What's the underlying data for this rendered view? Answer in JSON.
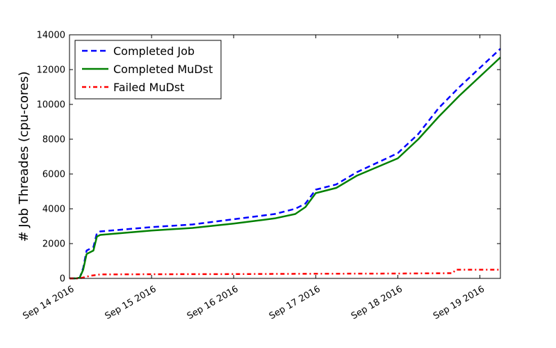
{
  "chart_data": {
    "type": "line",
    "title": "",
    "xlabel": "",
    "ylabel": "# Job Threades (cpu-cores)",
    "xlim": [
      "2016-09-14 00:00",
      "2016-09-19 06:00"
    ],
    "ylim": [
      0,
      14000
    ],
    "x_ticks": [
      "Sep 14 2016",
      "Sep 15 2016",
      "Sep 16 2016",
      "Sep 17 2016",
      "Sep 18 2016",
      "Sep 19 2016"
    ],
    "y_ticks": [
      "0",
      "2000",
      "4000",
      "6000",
      "8000",
      "10000",
      "12000",
      "14000"
    ],
    "grid": false,
    "legend_position": "top-left",
    "series": [
      {
        "name": "Completed Job",
        "color": "#0000ff",
        "style": "dashed",
        "x": [
          "2016-09-14 00:00",
          "2016-09-14 02:00",
          "2016-09-14 03:00",
          "2016-09-14 04:00",
          "2016-09-14 05:00",
          "2016-09-14 07:00",
          "2016-09-14 08:00",
          "2016-09-14 09:00",
          "2016-09-14 12:00",
          "2016-09-15 00:00",
          "2016-09-15 12:00",
          "2016-09-16 00:00",
          "2016-09-16 12:00",
          "2016-09-16 18:00",
          "2016-09-16 21:00",
          "2016-09-17 00:00",
          "2016-09-17 06:00",
          "2016-09-17 12:00",
          "2016-09-18 00:00",
          "2016-09-18 06:00",
          "2016-09-18 12:00",
          "2016-09-18 18:00",
          "2016-09-19 00:00",
          "2016-09-19 06:00"
        ],
        "y": [
          0,
          0,
          50,
          600,
          1600,
          1800,
          2600,
          2700,
          2750,
          2950,
          3100,
          3400,
          3700,
          4000,
          4300,
          5100,
          5400,
          6100,
          7200,
          8300,
          9800,
          11000,
          12100,
          13200
        ]
      },
      {
        "name": "Completed MuDst",
        "color": "#008000",
        "style": "solid",
        "x": [
          "2016-09-14 00:00",
          "2016-09-14 02:00",
          "2016-09-14 03:00",
          "2016-09-14 04:00",
          "2016-09-14 05:00",
          "2016-09-14 07:00",
          "2016-09-14 08:00",
          "2016-09-14 09:00",
          "2016-09-14 12:00",
          "2016-09-15 00:00",
          "2016-09-15 12:00",
          "2016-09-16 00:00",
          "2016-09-16 12:00",
          "2016-09-16 18:00",
          "2016-09-16 21:00",
          "2016-09-17 00:00",
          "2016-09-17 06:00",
          "2016-09-17 12:00",
          "2016-09-18 00:00",
          "2016-09-18 06:00",
          "2016-09-18 12:00",
          "2016-09-18 18:00",
          "2016-09-19 00:00",
          "2016-09-19 06:00"
        ],
        "y": [
          0,
          0,
          50,
          500,
          1400,
          1600,
          2400,
          2500,
          2550,
          2750,
          2900,
          3150,
          3450,
          3700,
          4100,
          4900,
          5200,
          5900,
          6900,
          8000,
          9300,
          10500,
          11600,
          12700
        ]
      },
      {
        "name": "Failed MuDst",
        "color": "#ff0000",
        "style": "dashdot",
        "x": [
          "2016-09-14 00:00",
          "2016-09-14 03:00",
          "2016-09-14 06:00",
          "2016-09-14 09:00",
          "2016-09-15 00:00",
          "2016-09-16 00:00",
          "2016-09-17 00:00",
          "2016-09-18 00:00",
          "2016-09-18 16:00",
          "2016-09-18 17:00",
          "2016-09-19 06:00"
        ],
        "y": [
          0,
          0,
          150,
          230,
          240,
          250,
          270,
          280,
          300,
          500,
          500
        ]
      }
    ]
  }
}
